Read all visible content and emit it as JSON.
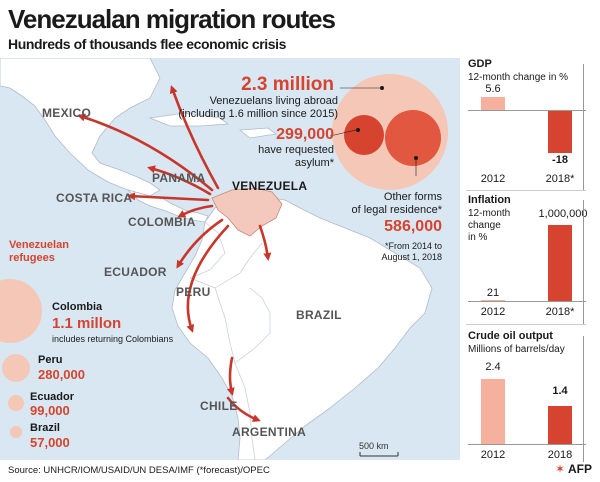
{
  "title": "Venezualan migration routes",
  "subtitle": "Hundreds of thousands flee economic crisis",
  "map": {
    "countries": {
      "mexico": "MEXICO",
      "panama": "PANAMA",
      "venezuela": "VENEZUELA",
      "costa_rica": "COSTA RICA",
      "colombia": "COLOMBIA",
      "ecuador": "ECUADOR",
      "peru": "PERU",
      "brazil": "BRAZIL",
      "chile": "CHILE",
      "argentina": "ARGENTINA"
    },
    "abroad": {
      "value": "2.3 million",
      "line1": "Venezuelans living abroad",
      "line2": "(including 1.6 million since 2015)"
    },
    "asylum": {
      "value": "299,000",
      "line1": "have requested",
      "line2": "asylum*"
    },
    "legal": {
      "line1": "Other forms",
      "line2": "of legal residence*",
      "value": "586,000",
      "note1": "*From 2014 to",
      "note2": "August 1,  2018"
    },
    "refugees": {
      "title1": "Venezuelan",
      "title2": "refugees",
      "colombia_name": "Colombia",
      "colombia_value": "1.1 millon",
      "colombia_note": "includes returning Colombians",
      "peru_name": "Peru",
      "peru_value": "280,000",
      "ecuador_name": "Ecuador",
      "ecuador_value": "99,000",
      "brazil_name": "Brazil",
      "brazil_value": "57,000"
    },
    "scale": "500 km",
    "colors": {
      "sea": "#d9e7f2",
      "land": "#ffffff",
      "venezuela": "#f2c9bc",
      "arrow": "#c8362a",
      "accent": "#d6432f",
      "light_bubble": "#f5c7b7"
    }
  },
  "source": "Source: UNHCR/IOM/USAID/UN DESA/IMF (*forecast)/OPEC",
  "logo": "AFP",
  "panels": {
    "gdp": {
      "title": "GDP",
      "sub": "12-month change in %",
      "categories": [
        "2012",
        "2018*"
      ],
      "labels": [
        "5.6",
        "-18"
      ],
      "values": [
        5.6,
        -18
      ]
    },
    "inflation": {
      "title": "Inflation",
      "sub1": "12-month",
      "sub2": "change",
      "sub3": "in %",
      "categories": [
        "2012",
        "2018*"
      ],
      "labels": [
        "21",
        "1,000,000"
      ],
      "values": [
        21,
        1000000
      ]
    },
    "oil": {
      "title": "Crude oil output",
      "sub": "Millions of barrels/day",
      "categories": [
        "2012",
        "2018"
      ],
      "labels": [
        "2.4",
        "1.4"
      ],
      "values": [
        2.4,
        1.4
      ]
    }
  },
  "chart_data": [
    {
      "type": "bar",
      "title": "GDP",
      "ylabel": "12-month change in %",
      "categories": [
        "2012",
        "2018*"
      ],
      "values": [
        5.6,
        -18
      ]
    },
    {
      "type": "bar",
      "title": "Inflation",
      "ylabel": "12-month change in %",
      "categories": [
        "2012",
        "2018*"
      ],
      "values": [
        21,
        1000000
      ]
    },
    {
      "type": "bar",
      "title": "Crude oil output",
      "ylabel": "Millions of barrels/day",
      "categories": [
        "2012",
        "2018"
      ],
      "values": [
        2.4,
        1.4
      ]
    }
  ]
}
